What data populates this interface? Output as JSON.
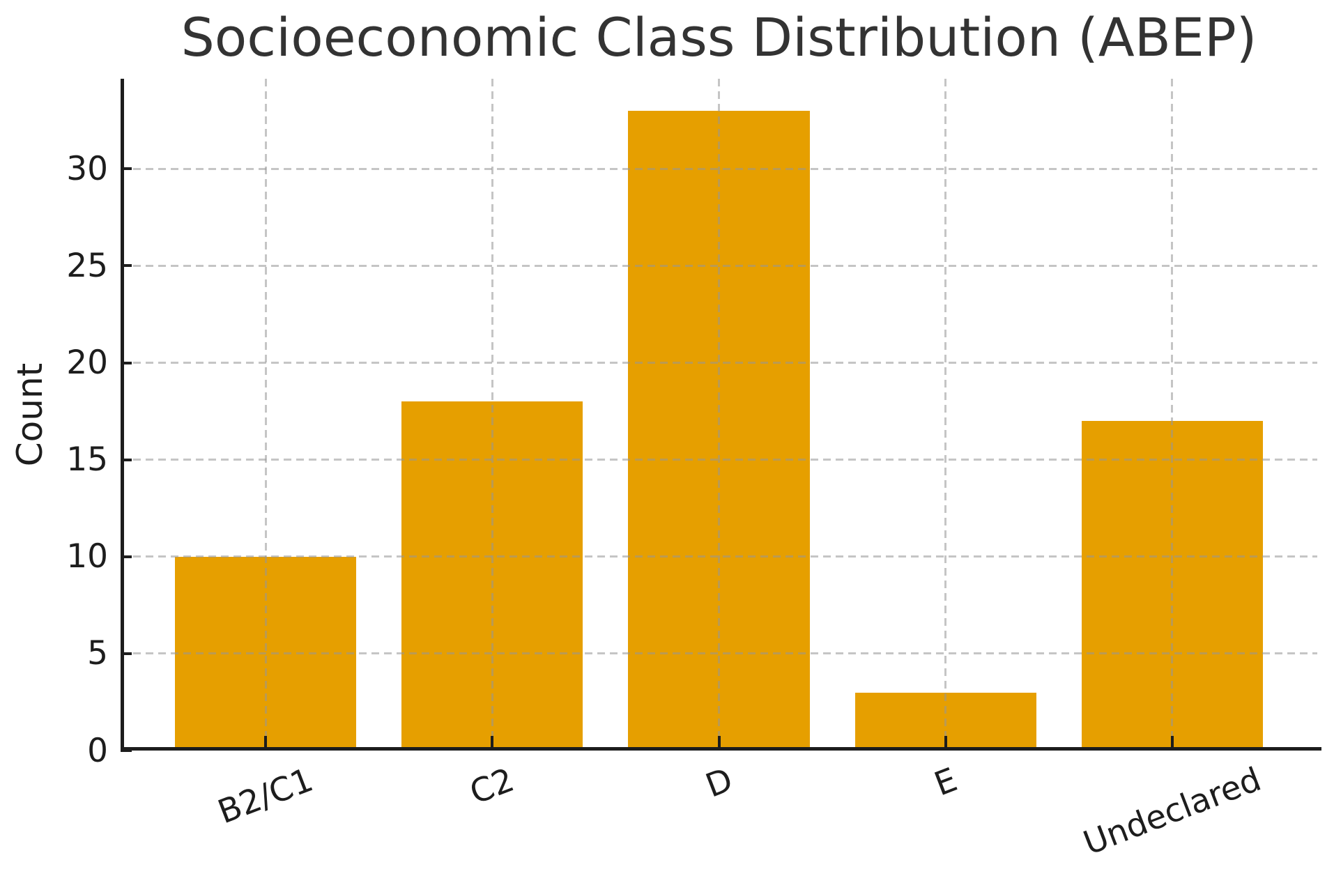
{
  "chart_data": {
    "type": "bar",
    "title": "Socioeconomic Class Distribution (ABEP)",
    "xlabel": "",
    "ylabel": "Count",
    "categories": [
      "B2/C1",
      "C2",
      "D",
      "E",
      "Undeclared"
    ],
    "values": [
      10,
      18,
      33,
      3,
      17
    ],
    "yticks": [
      0,
      5,
      10,
      15,
      20,
      25,
      30
    ],
    "ylim": [
      0,
      34.65
    ],
    "xticklabel_rotation_deg": 21,
    "grid": "dashed gridlines on both axes, drawn above bars",
    "legend": "none",
    "bar_color": "#E69F00",
    "grid_color": "#969696",
    "axis_color": "#1d1d1d",
    "text_color": "#1d1d1d",
    "title_color": "#333333",
    "background_color": "#ffffff"
  }
}
